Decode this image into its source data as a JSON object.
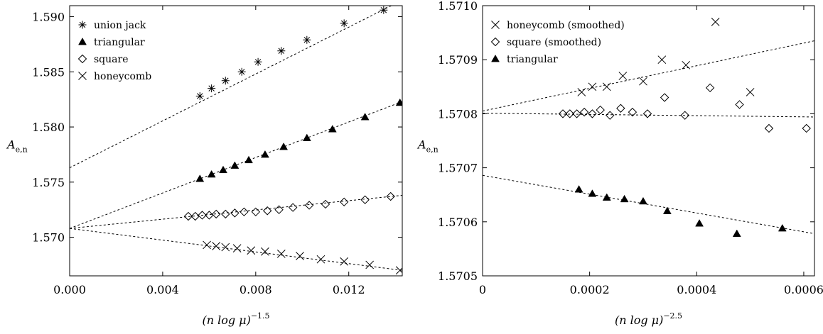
{
  "chart_data": [
    {
      "type": "scatter",
      "xlabel_base": "(n log μ)",
      "xlabel_exp": "−1.5",
      "ylabel_main": "A",
      "ylabel_sub": "e,n",
      "xlim": [
        0,
        0.0143
      ],
      "ylim": [
        1.5665,
        1.591
      ],
      "xticks": [
        0,
        0.004,
        0.008,
        0.012
      ],
      "xtick_labels": [
        "0.000",
        "0.004",
        "0.008",
        "0.012"
      ],
      "yticks": [
        1.57,
        1.575,
        1.58,
        1.585,
        1.59
      ],
      "ytick_labels": [
        "1.570",
        "1.575",
        "1.580",
        "1.585",
        "1.590"
      ],
      "legend_position": "top-left",
      "grid": false,
      "series": [
        {
          "name": "union jack",
          "marker": "asterisk",
          "x": [
            0.0056,
            0.0061,
            0.0067,
            0.0074,
            0.0081,
            0.0091,
            0.0102,
            0.0118,
            0.0135
          ],
          "y": [
            1.5828,
            1.5835,
            1.5842,
            1.585,
            1.5859,
            1.5869,
            1.5879,
            1.5894,
            1.5906
          ],
          "fit": [
            [
              0,
              1.5763
            ],
            [
              0.0143,
              1.5915
            ]
          ]
        },
        {
          "name": "triangular",
          "marker": "triangle",
          "x": [
            0.0056,
            0.0061,
            0.0066,
            0.0071,
            0.0077,
            0.0084,
            0.0092,
            0.0102,
            0.0113,
            0.0127,
            0.0142
          ],
          "y": [
            1.5753,
            1.5757,
            1.5761,
            1.5765,
            1.577,
            1.5775,
            1.5782,
            1.579,
            1.5798,
            1.5809,
            1.5822
          ],
          "fit": [
            [
              0,
              1.5708
            ],
            [
              0.0143,
              1.5823
            ]
          ]
        },
        {
          "name": "square",
          "marker": "diamond",
          "x": [
            0.0051,
            0.0054,
            0.0057,
            0.006,
            0.0063,
            0.0067,
            0.0071,
            0.0075,
            0.008,
            0.0085,
            0.009,
            0.0096,
            0.0103,
            0.011,
            0.0118,
            0.0127,
            0.0138
          ],
          "y": [
            1.5719,
            1.5719,
            1.572,
            1.572,
            1.5721,
            1.5721,
            1.5722,
            1.5723,
            1.5723,
            1.5724,
            1.5725,
            1.5727,
            1.5729,
            1.573,
            1.5732,
            1.5734,
            1.5737
          ],
          "fit": [
            [
              0,
              1.5708
            ],
            [
              0.0143,
              1.5738
            ]
          ]
        },
        {
          "name": "honeycomb",
          "marker": "cross",
          "x": [
            0.0059,
            0.0063,
            0.0067,
            0.0072,
            0.0078,
            0.0084,
            0.0091,
            0.0099,
            0.0108,
            0.0118,
            0.0129,
            0.0142
          ],
          "y": [
            1.5693,
            1.5692,
            1.5691,
            1.569,
            1.5688,
            1.5687,
            1.5685,
            1.5683,
            1.568,
            1.5678,
            1.5675,
            1.567
          ],
          "fit": [
            [
              0,
              1.5708
            ],
            [
              0.0143,
              1.567
            ]
          ]
        }
      ]
    },
    {
      "type": "scatter",
      "xlabel_base": "(n log μ)",
      "xlabel_exp": "−2.5",
      "ylabel_main": "A",
      "ylabel_sub": "e,n",
      "xlim": [
        0,
        0.00062
      ],
      "ylim": [
        1.5705,
        1.571
      ],
      "xticks": [
        0,
        0.0002,
        0.0004,
        0.0006
      ],
      "xtick_labels": [
        "0",
        "0.0002",
        "0.0004",
        "0.0006"
      ],
      "yticks": [
        1.5705,
        1.5706,
        1.5707,
        1.5708,
        1.5709,
        1.571
      ],
      "ytick_labels": [
        "1.5705",
        "1.5706",
        "1.5707",
        "1.5708",
        "1.5709",
        "1.5710"
      ],
      "legend_position": "top-left",
      "grid": false,
      "series": [
        {
          "name": "honeycomb (smoothed)",
          "marker": "cross",
          "x": [
            0.000185,
            0.000205,
            0.000232,
            0.000262,
            0.0003,
            0.000335,
            0.00038,
            0.000435,
            0.0005
          ],
          "y": [
            1.57084,
            1.57085,
            1.57085,
            1.57087,
            1.57086,
            1.5709,
            1.57089,
            1.57097,
            1.57084
          ],
          "fit": [
            [
              0,
              1.570805
            ],
            [
              0.00062,
              1.570935
            ]
          ]
        },
        {
          "name": "square (smoothed)",
          "marker": "diamond",
          "x": [
            0.00015,
            0.000163,
            0.000176,
            0.00019,
            0.000205,
            0.00022,
            0.000238,
            0.000258,
            0.00028,
            0.000308,
            0.00034,
            0.000378,
            0.000425,
            0.00048,
            0.000535,
            0.000605
          ],
          "y": [
            1.5708,
            1.5708,
            1.5708,
            1.570803,
            1.5708,
            1.570807,
            1.570797,
            1.57081,
            1.570803,
            1.5708,
            1.57083,
            1.570797,
            1.570848,
            1.570817,
            1.570773,
            1.570773
          ],
          "fit": [
            [
              0,
              1.570801
            ],
            [
              0.00062,
              1.570794
            ]
          ]
        },
        {
          "name": "triangular",
          "marker": "triangle",
          "x": [
            0.00018,
            0.000205,
            0.000232,
            0.000265,
            0.0003,
            0.000345,
            0.000405,
            0.000475,
            0.00056
          ],
          "y": [
            1.57066,
            1.570652,
            1.570645,
            1.570642,
            1.570638,
            1.57062,
            1.570597,
            1.570578,
            1.570588
          ],
          "fit": [
            [
              0,
              1.570686
            ],
            [
              0.00062,
              1.570578
            ]
          ]
        }
      ]
    }
  ]
}
